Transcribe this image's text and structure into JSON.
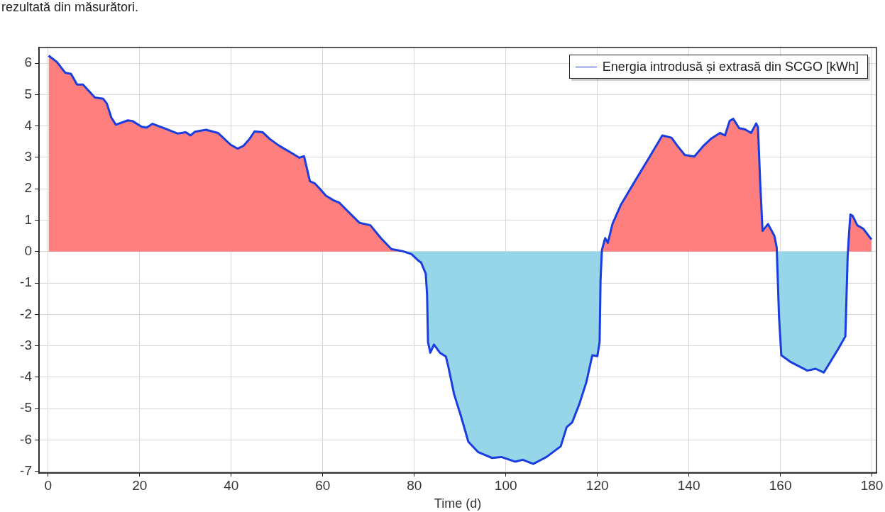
{
  "chart_data": {
    "type": "area",
    "xlabel": "Time (d)",
    "annotations": [
      "rezultată din măsurători."
    ],
    "legend": "top right",
    "grid": true,
    "xlim": [
      -2,
      181
    ],
    "ylim": [
      -7.05,
      6.5
    ],
    "xticks": [
      0,
      20,
      40,
      60,
      80,
      100,
      120,
      140,
      160,
      180
    ],
    "yticks": [
      -7,
      -6,
      -5,
      -4,
      -3,
      -2,
      -1,
      0,
      1,
      2,
      3,
      4,
      5,
      6
    ],
    "series": [
      {
        "color": "#ff7f7f",
        "x": [
          0.1,
          1.9,
          3.7,
          5.0,
          6.3,
          7.6,
          10.2,
          12.0,
          12.8,
          13.8,
          14.8,
          17.4,
          18.4,
          20.5,
          21.5,
          22.8,
          25.7,
          28.3,
          30.1,
          31.1,
          32.1,
          34.5,
          37.1,
          39.9,
          41.4,
          42.7,
          44.0,
          45.1,
          46.9,
          48.4,
          50.5,
          52.6,
          54.9,
          55.9,
          57.2,
          58.2,
          59.3,
          60.7,
          62.4,
          63.6,
          68.0,
          70.4,
          72.7,
          75.0,
          77.3,
          77.7,
          100,
          120.98,
          121.0,
          121.7,
          122.3,
          123.3,
          125.1,
          128.2,
          131.3,
          134.2,
          136.2,
          137.5,
          139.1,
          141.2,
          143.2,
          144.8,
          146.8,
          147.9,
          148.9,
          149.7,
          151.0,
          152.3,
          153.6,
          154.7,
          155.1,
          155.6,
          156.1,
          157.3,
          158.7,
          159.2,
          159.23,
          167,
          174.77,
          175.0,
          175.3,
          175.8,
          176.8,
          178.1,
          179.9
        ],
        "values": [
          6.24,
          6.04,
          5.7,
          5.66,
          5.32,
          5.32,
          4.91,
          4.87,
          4.72,
          4.27,
          4.04,
          4.18,
          4.16,
          3.97,
          3.95,
          4.07,
          3.91,
          3.76,
          3.8,
          3.7,
          3.82,
          3.88,
          3.78,
          3.4,
          3.28,
          3.37,
          3.59,
          3.83,
          3.8,
          3.59,
          3.37,
          3.19,
          2.99,
          3.04,
          2.24,
          2.18,
          2.01,
          1.78,
          1.63,
          1.56,
          0.92,
          0.84,
          0.43,
          0.08,
          0.02,
          0,
          null,
          0,
          0.05,
          0.43,
          0.28,
          0.88,
          1.48,
          2.24,
          2.99,
          3.7,
          3.63,
          3.37,
          3.08,
          3.03,
          3.37,
          3.59,
          3.78,
          3.7,
          4.16,
          4.23,
          3.93,
          3.89,
          3.78,
          4.08,
          3.97,
          2.16,
          0.66,
          0.88,
          0.5,
          0.13,
          0,
          null,
          0,
          0.58,
          1.18,
          1.14,
          0.84,
          0.73,
          0.39
        ]
      },
      {
        "color": "#97d6e8",
        "x": [
          77.7,
          79.4,
          81.0,
          81.5,
          82.5,
          82.8,
          83.0,
          83.5,
          84.3,
          85.6,
          86.9,
          87.4,
          88.7,
          90.3,
          91.8,
          93.9,
          97.0,
          99.0,
          102.1,
          103.7,
          106.0,
          108.9,
          112.0,
          113.3,
          114.5,
          116.1,
          117.6,
          118.9,
          120.0,
          120.5,
          120.7,
          120.98,
          140,
          159.23,
          159.7,
          160.2,
          162.3,
          165.9,
          167.7,
          169.5,
          172.6,
          174.2,
          174.7,
          174.77
        ],
        "values": [
          0,
          -0.08,
          -0.3,
          -0.35,
          -0.7,
          -1.38,
          -2.88,
          -3.22,
          -2.96,
          -3.22,
          -3.34,
          -3.64,
          -4.54,
          -5.29,
          -6.05,
          -6.38,
          -6.57,
          -6.54,
          -6.69,
          -6.63,
          -6.76,
          -6.54,
          -6.2,
          -5.59,
          -5.44,
          -4.84,
          -4.16,
          -3.3,
          -3.33,
          -2.88,
          -0.92,
          0,
          null,
          0,
          -2.06,
          -3.3,
          -3.52,
          -3.79,
          -3.73,
          -3.85,
          -3.11,
          -2.7,
          -0.17,
          0
        ]
      },
      {
        "type": "line",
        "name": "Energia introdusă și extrasă din SCGO [kWh]",
        "color": "#1a3de0",
        "x": [
          0.1,
          1.9,
          3.7,
          5.0,
          6.3,
          7.6,
          10.2,
          12.0,
          12.8,
          13.8,
          14.8,
          17.4,
          18.4,
          20.5,
          21.5,
          22.8,
          25.7,
          28.3,
          30.1,
          31.1,
          32.1,
          34.5,
          37.1,
          39.9,
          41.4,
          42.7,
          44.0,
          45.1,
          46.9,
          48.4,
          50.5,
          52.6,
          54.9,
          55.9,
          57.2,
          58.2,
          59.3,
          60.7,
          62.4,
          63.6,
          68.0,
          70.4,
          72.7,
          75.0,
          77.3,
          79.4,
          81.0,
          81.5,
          82.5,
          82.8,
          83.0,
          83.5,
          84.3,
          85.6,
          86.9,
          87.4,
          88.7,
          90.3,
          91.8,
          93.9,
          97.0,
          99.0,
          102.1,
          103.7,
          106.0,
          108.9,
          112.0,
          113.3,
          114.5,
          116.1,
          117.6,
          118.9,
          120.0,
          120.5,
          120.7,
          121.0,
          121.7,
          122.3,
          123.3,
          125.1,
          128.2,
          131.3,
          134.2,
          136.2,
          137.5,
          139.1,
          141.2,
          143.2,
          144.8,
          146.8,
          147.9,
          148.9,
          149.7,
          151.0,
          152.3,
          153.6,
          154.7,
          155.1,
          155.6,
          156.1,
          157.3,
          158.7,
          159.2,
          159.7,
          160.2,
          162.3,
          165.9,
          167.7,
          169.5,
          172.6,
          174.2,
          174.7,
          175.0,
          175.3,
          175.8,
          176.8,
          178.1,
          179.9
        ],
        "values": [
          6.24,
          6.04,
          5.7,
          5.66,
          5.32,
          5.32,
          4.91,
          4.87,
          4.72,
          4.27,
          4.04,
          4.18,
          4.16,
          3.97,
          3.95,
          4.07,
          3.91,
          3.76,
          3.8,
          3.7,
          3.82,
          3.88,
          3.78,
          3.4,
          3.28,
          3.37,
          3.59,
          3.83,
          3.8,
          3.59,
          3.37,
          3.19,
          2.99,
          3.04,
          2.24,
          2.18,
          2.01,
          1.78,
          1.63,
          1.56,
          0.92,
          0.84,
          0.43,
          0.08,
          0.02,
          -0.08,
          -0.3,
          -0.35,
          -0.7,
          -1.38,
          -2.88,
          -3.22,
          -2.96,
          -3.22,
          -3.34,
          -3.64,
          -4.54,
          -5.29,
          -6.05,
          -6.38,
          -6.57,
          -6.54,
          -6.69,
          -6.63,
          -6.76,
          -6.54,
          -6.2,
          -5.59,
          -5.44,
          -4.84,
          -4.16,
          -3.3,
          -3.33,
          -2.88,
          -0.92,
          0.05,
          0.43,
          0.28,
          0.88,
          1.48,
          2.24,
          2.99,
          3.7,
          3.63,
          3.37,
          3.08,
          3.03,
          3.37,
          3.59,
          3.78,
          3.7,
          4.16,
          4.23,
          3.93,
          3.89,
          3.78,
          4.08,
          3.97,
          2.16,
          0.66,
          0.88,
          0.5,
          0.13,
          -2.06,
          -3.3,
          -3.52,
          -3.79,
          -3.73,
          -3.85,
          -3.11,
          -2.7,
          -0.17,
          0.58,
          1.18,
          1.14,
          0.84,
          0.73,
          0.39
        ]
      }
    ]
  }
}
